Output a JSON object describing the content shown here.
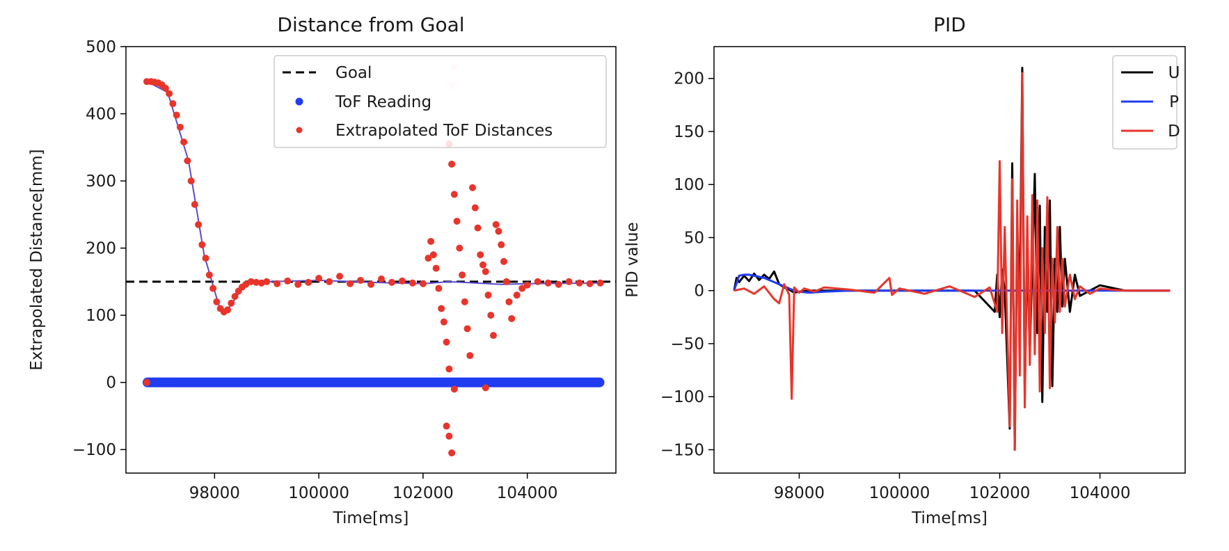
{
  "chart_data": [
    {
      "type": "scatter",
      "title": "Distance from Goal",
      "xlabel": "Time[ms]",
      "ylabel": "Extrapolated Distance[mm]",
      "xlim": [
        96300,
        105700
      ],
      "ylim": [
        -135,
        500
      ],
      "xticks": [
        98000,
        100000,
        102000,
        104000
      ],
      "yticks": [
        -100,
        0,
        100,
        200,
        300,
        400,
        500
      ],
      "grid": false,
      "legend_position": "top-right",
      "goal": {
        "name": "Goal",
        "value": 150,
        "color": "#000000",
        "style": "dashed"
      },
      "series": [
        {
          "name": "ToF Reading",
          "color": "#1f3cf0",
          "kind": "scatter",
          "points": [
            [
              96700,
              0
            ],
            [
              105400,
              0
            ]
          ]
        },
        {
          "name": "Extrapolated ToF Distances",
          "color": "#e8352b",
          "kind": "scatter",
          "points": [
            [
              96700,
              448
            ],
            [
              96780,
              448
            ],
            [
              96850,
              447
            ],
            [
              96920,
              446
            ],
            [
              96990,
              443
            ],
            [
              97060,
              438
            ],
            [
              97130,
              430
            ],
            [
              97200,
              415
            ],
            [
              97270,
              398
            ],
            [
              97340,
              380
            ],
            [
              97410,
              358
            ],
            [
              97480,
              330
            ],
            [
              97550,
              300
            ],
            [
              97620,
              265
            ],
            [
              97690,
              235
            ],
            [
              97760,
              205
            ],
            [
              97830,
              185
            ],
            [
              97900,
              160
            ],
            [
              97970,
              140
            ],
            [
              98040,
              120
            ],
            [
              98110,
              110
            ],
            [
              98180,
              105
            ],
            [
              98250,
              108
            ],
            [
              98320,
              118
            ],
            [
              98390,
              128
            ],
            [
              98460,
              136
            ],
            [
              98530,
              142
            ],
            [
              98600,
              146
            ],
            [
              98700,
              150
            ],
            [
              98800,
              149
            ],
            [
              98900,
              148
            ],
            [
              99000,
              150
            ],
            [
              99200,
              147
            ],
            [
              99400,
              151
            ],
            [
              99600,
              146
            ],
            [
              99800,
              149
            ],
            [
              100000,
              155
            ],
            [
              100200,
              150
            ],
            [
              100400,
              158
            ],
            [
              100600,
              147
            ],
            [
              100800,
              152
            ],
            [
              101000,
              146
            ],
            [
              101200,
              154
            ],
            [
              101400,
              149
            ],
            [
              101600,
              151
            ],
            [
              101800,
              148
            ],
            [
              102000,
              147
            ],
            [
              102100,
              185
            ],
            [
              102150,
              210
            ],
            [
              102200,
              190
            ],
            [
              102250,
              170
            ],
            [
              102300,
              140
            ],
            [
              102350,
              110
            ],
            [
              102400,
              90
            ],
            [
              102450,
              60
            ],
            [
              102500,
              20
            ],
            [
              102550,
              325
            ],
            [
              102600,
              280
            ],
            [
              102650,
              240
            ],
            [
              102700,
              200
            ],
            [
              102750,
              160
            ],
            [
              102800,
              120
            ],
            [
              102850,
              80
            ],
            [
              102900,
              40
            ],
            [
              102950,
              290
            ],
            [
              103000,
              260
            ],
            [
              103050,
              230
            ],
            [
              103100,
              190
            ],
            [
              103150,
              175
            ],
            [
              103200,
              165
            ],
            [
              103250,
              130
            ],
            [
              103300,
              100
            ],
            [
              103350,
              70
            ],
            [
              103400,
              235
            ],
            [
              103450,
              225
            ],
            [
              103500,
              205
            ],
            [
              103550,
              180
            ],
            [
              103600,
              150
            ],
            [
              103650,
              120
            ],
            [
              103700,
              95
            ],
            [
              103800,
              130
            ],
            [
              103900,
              140
            ],
            [
              104000,
              145
            ],
            [
              104200,
              150
            ],
            [
              104400,
              148
            ],
            [
              104600,
              146
            ],
            [
              104800,
              150
            ],
            [
              105000,
              148
            ],
            [
              105200,
              147
            ],
            [
              105400,
              148
            ],
            [
              102450,
              -65
            ],
            [
              102500,
              -80
            ],
            [
              102550,
              -105
            ],
            [
              102600,
              -10
            ],
            [
              103200,
              -8
            ],
            [
              96700,
              0
            ],
            [
              102500,
              355
            ],
            [
              102550,
              442
            ],
            [
              102600,
              470
            ]
          ]
        },
        {
          "name": "",
          "color": "#5a4bd0",
          "kind": "line",
          "points": [
            [
              96700,
              448
            ],
            [
              97100,
              432
            ],
            [
              97500,
              330
            ],
            [
              97800,
              190
            ],
            [
              98100,
              110
            ],
            [
              98250,
              108
            ],
            [
              98600,
              148
            ],
            [
              99000,
              150
            ],
            [
              100000,
              152
            ],
            [
              101000,
              149
            ],
            [
              102000,
              147
            ],
            [
              102500,
              150
            ],
            [
              103000,
              148
            ],
            [
              103500,
              146
            ],
            [
              104000,
              147
            ],
            [
              105400,
              148
            ]
          ]
        }
      ]
    },
    {
      "type": "line",
      "title": "PID",
      "xlabel": "Time[ms]",
      "ylabel": "PID value",
      "xlim": [
        96300,
        105700
      ],
      "ylim": [
        -172,
        230
      ],
      "xticks": [
        98000,
        100000,
        102000,
        104000
      ],
      "yticks": [
        -150,
        -100,
        -50,
        0,
        50,
        100,
        150,
        200
      ],
      "grid": false,
      "legend_position": "top-right",
      "series": [
        {
          "name": "U",
          "color": "#000000",
          "x": [
            96700,
            96750,
            96800,
            96900,
            97000,
            97100,
            97200,
            97300,
            97400,
            97500,
            97600,
            97700,
            97800,
            97900,
            98000,
            98200,
            98500,
            99000,
            99500,
            100000,
            100500,
            101000,
            101500,
            101900,
            101950,
            102000,
            102050,
            102100,
            102200,
            102250,
            102300,
            102350,
            102400,
            102450,
            102500,
            102550,
            102600,
            102700,
            102750,
            102800,
            102850,
            102900,
            102950,
            103000,
            103050,
            103100,
            103150,
            103200,
            103250,
            103300,
            103400,
            103500,
            103600,
            104000,
            104500,
            105000,
            105400
          ],
          "values": [
            0,
            12,
            8,
            14,
            9,
            16,
            10,
            15,
            11,
            18,
            6,
            3,
            1,
            -2,
            -1,
            0,
            0,
            0,
            0,
            0,
            0,
            0,
            0,
            -20,
            15,
            -25,
            20,
            0,
            -130,
            120,
            -150,
            60,
            -10,
            210,
            -100,
            40,
            -60,
            110,
            -40,
            80,
            -105,
            60,
            -20,
            85,
            -90,
            30,
            -20,
            60,
            -15,
            30,
            -20,
            15,
            -5,
            5,
            0,
            0,
            0
          ]
        },
        {
          "name": "P",
          "color": "#1f3cf0",
          "x": [
            96700,
            96800,
            96900,
            97000,
            97100,
            97200,
            97300,
            97400,
            97500,
            97600,
            97700,
            97800,
            97900,
            98000,
            98200,
            98500,
            99000,
            100000,
            101000,
            102000,
            102500,
            103000,
            103500,
            104000,
            105000,
            105400
          ],
          "values": [
            0,
            14,
            15,
            15,
            14,
            13,
            12,
            10,
            8,
            6,
            4,
            2,
            0,
            -1,
            -2,
            -1,
            0,
            0,
            0,
            0,
            0,
            0,
            0,
            0,
            0,
            0
          ]
        },
        {
          "name": "D",
          "color": "#e8352b",
          "x": [
            96700,
            96900,
            97100,
            97300,
            97500,
            97600,
            97700,
            97800,
            97850,
            97900,
            98000,
            98100,
            98300,
            98500,
            99000,
            99500,
            99800,
            99850,
            100000,
            100500,
            101000,
            101500,
            101800,
            101950,
            102000,
            102050,
            102100,
            102200,
            102250,
            102300,
            102350,
            102400,
            102450,
            102500,
            102550,
            102600,
            102650,
            102700,
            102750,
            102800,
            102850,
            102900,
            102950,
            103000,
            103050,
            103100,
            103150,
            103200,
            103250,
            103300,
            103400,
            103500,
            103600,
            103800,
            104000,
            104200,
            104500,
            105000,
            105400
          ],
          "values": [
            0,
            2,
            -3,
            4,
            -8,
            -12,
            6,
            -4,
            -102,
            3,
            -2,
            2,
            -1,
            3,
            1,
            -2,
            12,
            -4,
            2,
            -3,
            4,
            -6,
            3,
            -20,
            122,
            -40,
            60,
            -128,
            105,
            -150,
            85,
            -80,
            205,
            -110,
            70,
            -70,
            90,
            -60,
            85,
            -95,
            40,
            -40,
            88,
            -92,
            30,
            -30,
            60,
            -20,
            30,
            -15,
            15,
            -8,
            4,
            -3,
            2,
            1,
            0,
            0,
            0
          ]
        }
      ]
    }
  ]
}
